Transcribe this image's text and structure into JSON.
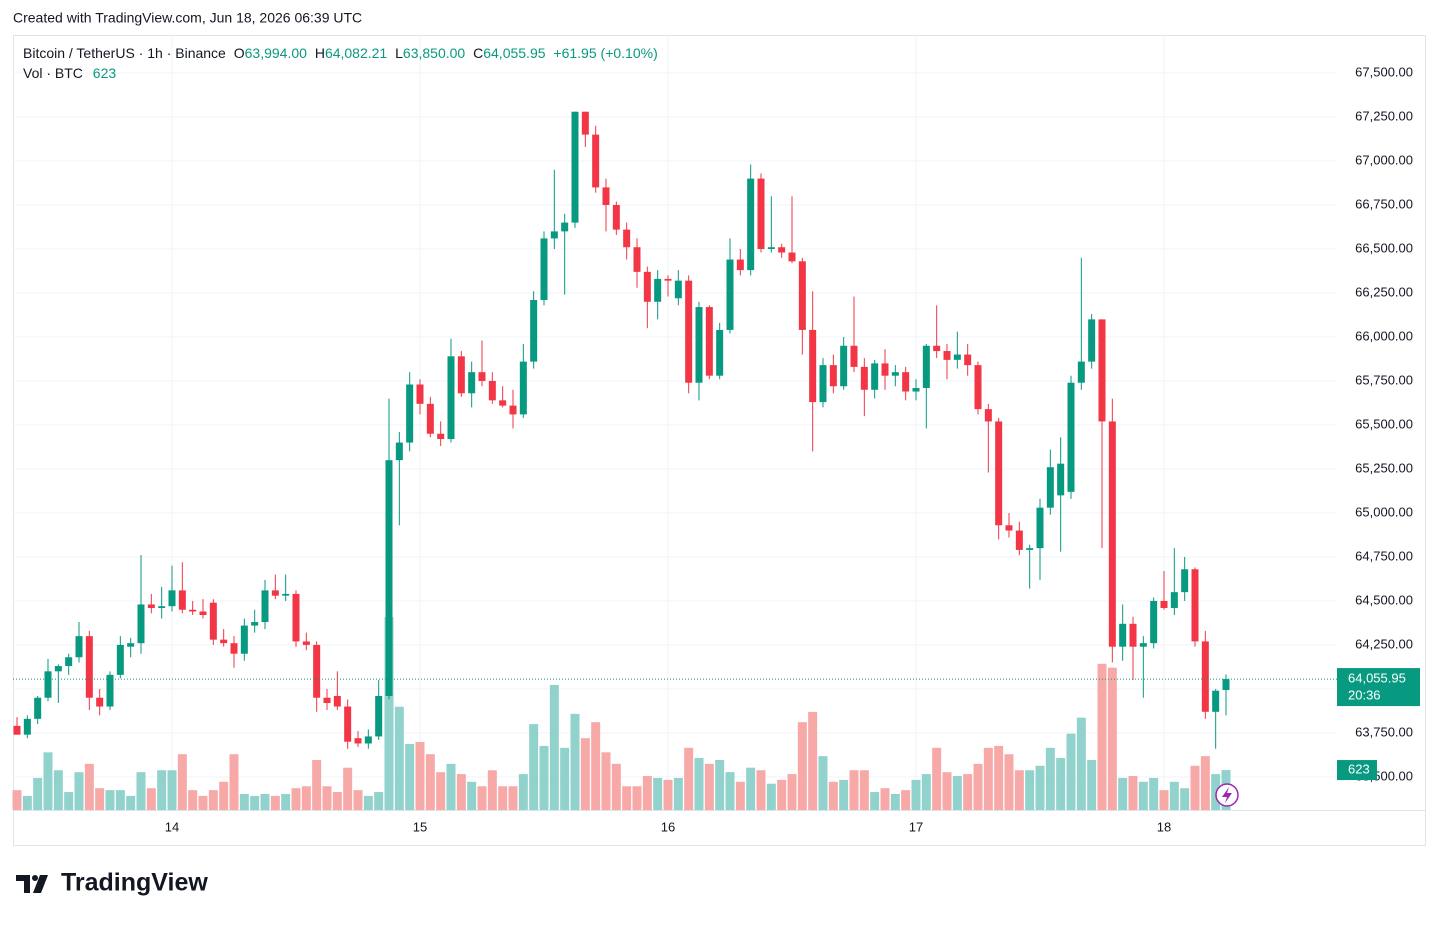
{
  "chart_data": {
    "type": "candlestick",
    "caption": "Created with TradingView.com, Jun 18, 2026 06:39 UTC",
    "brand": "TradingView",
    "legend": {
      "symbol": "Bitcoin / TetherUS · 1h · Binance",
      "o_prefix": "O",
      "o": {
        "value": 63994,
        "label": "63,994.00"
      },
      "h_prefix": "H",
      "h": {
        "value": 64082.21,
        "label": "64,082.21"
      },
      "l_prefix": "L",
      "l": {
        "value": 63850,
        "label": "63,850.00"
      },
      "c_prefix": "C",
      "c": {
        "value": 64055.95,
        "label": "64,055.95"
      },
      "change": {
        "value": 61.95,
        "label": "+61.95"
      },
      "change_pct": {
        "value": 0.1,
        "label": "(+0.10%)"
      },
      "vol_name": "Vol · BTC",
      "vol": 623
    },
    "countdown": "20:36",
    "up_color": "#089981",
    "down_color": "#f23645",
    "up_volume_color": "#92d2cc",
    "down_volume_color": "#f7a9a7",
    "grid": true,
    "ylim": [
      63312,
      67716
    ],
    "yticks": [
      {
        "value": 63500,
        "label": "63,500.00"
      },
      {
        "value": 63750,
        "label": "63,750.00"
      },
      {
        "value": 64000,
        "label": "64,000.00"
      },
      {
        "value": 64250,
        "label": "64,250.00"
      },
      {
        "value": 64500,
        "label": "64,500.00"
      },
      {
        "value": 64750,
        "label": "64,750.00"
      },
      {
        "value": 65000,
        "label": "65,000.00"
      },
      {
        "value": 65250,
        "label": "65,250.00"
      },
      {
        "value": 65500,
        "label": "65,500.00"
      },
      {
        "value": 65750,
        "label": "65,750.00"
      },
      {
        "value": 66000,
        "label": "66,000.00"
      },
      {
        "value": 66250,
        "label": "66,250.00"
      },
      {
        "value": 66500,
        "label": "66,500.00"
      },
      {
        "value": 66750,
        "label": "66,750.00"
      },
      {
        "value": 67000,
        "label": "67,000.00"
      },
      {
        "value": 67250,
        "label": "67,250.00"
      },
      {
        "value": 67500,
        "label": "67,500.00"
      }
    ],
    "categories": [
      null,
      null,
      null,
      null,
      null,
      null,
      null,
      null,
      null,
      null,
      null,
      null,
      null,
      null,
      null,
      "14",
      null,
      null,
      null,
      null,
      null,
      null,
      null,
      null,
      null,
      null,
      null,
      null,
      null,
      null,
      null,
      null,
      null,
      null,
      null,
      null,
      null,
      null,
      null,
      "15",
      null,
      null,
      null,
      null,
      null,
      null,
      null,
      null,
      null,
      null,
      null,
      null,
      null,
      null,
      null,
      null,
      null,
      null,
      null,
      null,
      null,
      null,
      null,
      "16",
      null,
      null,
      null,
      null,
      null,
      null,
      null,
      null,
      null,
      null,
      null,
      null,
      null,
      null,
      null,
      null,
      null,
      null,
      null,
      null,
      null,
      null,
      null,
      "17",
      null,
      null,
      null,
      null,
      null,
      null,
      null,
      null,
      null,
      null,
      null,
      null,
      null,
      null,
      null,
      null,
      null,
      null,
      null,
      null,
      null,
      null,
      null,
      "18",
      null,
      null,
      null,
      null,
      null,
      null
    ],
    "open": [
      63790,
      63740,
      63830,
      63950,
      64100,
      64130,
      64180,
      64300,
      63950,
      63900,
      64080,
      64240,
      64260,
      64480,
      64460,
      64470,
      64560,
      64450,
      64440,
      64490,
      64280,
      64260,
      64200,
      64360,
      64380,
      64560,
      64530,
      64540,
      64270,
      64250,
      63950,
      63960,
      63900,
      63720,
      63690,
      63730,
      63960,
      65300,
      65400,
      65730,
      65620,
      65450,
      65420,
      65890,
      65680,
      65800,
      65750,
      65640,
      65610,
      65560,
      65860,
      66210,
      66560,
      66600,
      66650,
      67280,
      67150,
      66850,
      66750,
      66610,
      66510,
      66370,
      66200,
      66330,
      66220,
      66320,
      65740,
      66170,
      65780,
      66040,
      66440,
      66380,
      66900,
      66500,
      66510,
      66480,
      66430,
      66040,
      65630,
      65840,
      65720,
      65950,
      65830,
      65700,
      65850,
      65780,
      65800,
      65690,
      65710,
      65950,
      65920,
      65870,
      65900,
      65840,
      65590,
      65520,
      64930,
      64900,
      64790,
      64800,
      65030,
      65100,
      65120,
      65740,
      65860,
      66100,
      65520,
      64240,
      64370,
      64240,
      64260,
      64500,
      64460,
      64550,
      64680,
      64270,
      63870,
      63994
    ],
    "high": [
      63840,
      63850,
      63960,
      64170,
      64140,
      64200,
      64380,
      64330,
      64000,
      64100,
      64300,
      64290,
      64760,
      64540,
      64580,
      64700,
      64720,
      64500,
      64510,
      64510,
      64340,
      64300,
      64400,
      64450,
      64620,
      64650,
      64650,
      64560,
      64320,
      64270,
      64000,
      64100,
      63940,
      63760,
      63770,
      64050,
      65650,
      65460,
      65800,
      65760,
      65660,
      65520,
      65990,
      65920,
      65860,
      65980,
      65800,
      65720,
      65700,
      65960,
      66260,
      66600,
      66950,
      66700,
      67280,
      67280,
      67200,
      66900,
      66770,
      66650,
      66560,
      66400,
      66380,
      66350,
      66380,
      66350,
      66200,
      66180,
      66080,
      66560,
      66500,
      66980,
      66930,
      66800,
      66530,
      66800,
      66450,
      66260,
      65880,
      65900,
      66000,
      66230,
      65880,
      65870,
      65930,
      65840,
      65830,
      65760,
      65960,
      66180,
      65960,
      66030,
      65960,
      65860,
      65620,
      65540,
      65000,
      64950,
      64820,
      65080,
      65360,
      65430,
      65780,
      66450,
      66130,
      66100,
      65650,
      64480,
      64410,
      64300,
      64520,
      64670,
      64800,
      64750,
      64690,
      64330,
      64000,
      64082.21
    ],
    "low": [
      63740,
      63720,
      63800,
      63930,
      63920,
      64080,
      64150,
      63880,
      63850,
      63880,
      64060,
      64180,
      64200,
      64430,
      64400,
      64440,
      64430,
      64420,
      64400,
      64250,
      64240,
      64120,
      64160,
      64320,
      64340,
      64510,
      64500,
      64240,
      64220,
      63870,
      63880,
      63880,
      63660,
      63670,
      63660,
      63710,
      63940,
      64930,
      65350,
      65560,
      65430,
      65380,
      65400,
      65660,
      65600,
      65720,
      65620,
      65600,
      65480,
      65540,
      65820,
      66180,
      66500,
      66240,
      66620,
      67080,
      66820,
      66600,
      66580,
      66440,
      66280,
      66050,
      66100,
      66230,
      66180,
      65680,
      65640,
      65760,
      65760,
      66020,
      66350,
      66350,
      66480,
      66480,
      66450,
      66420,
      65900,
      65350,
      65600,
      65680,
      65700,
      65800,
      65550,
      65650,
      65700,
      65720,
      65640,
      65640,
      65480,
      65880,
      65760,
      65820,
      65780,
      65560,
      65230,
      64850,
      64860,
      64760,
      64570,
      64620,
      64990,
      64780,
      65080,
      65700,
      65820,
      64800,
      64150,
      64160,
      64050,
      63950,
      64230,
      64450,
      64420,
      64500,
      64240,
      63830,
      63660,
      63850
    ],
    "close": [
      63740,
      63830,
      63950,
      64100,
      64130,
      64180,
      64300,
      63950,
      63900,
      64080,
      64250,
      64260,
      64480,
      64460,
      64470,
      64560,
      64450,
      64440,
      64420,
      64280,
      64260,
      64200,
      64360,
      64380,
      64560,
      64530,
      64540,
      64270,
      64250,
      63950,
      63920,
      63900,
      63700,
      63690,
      63730,
      63960,
      65300,
      65400,
      65730,
      65620,
      65450,
      65420,
      65890,
      65680,
      65800,
      65750,
      65640,
      65610,
      65560,
      65860,
      66210,
      66560,
      66600,
      66650,
      67280,
      67150,
      66850,
      66750,
      66610,
      66510,
      66370,
      66200,
      66330,
      66320,
      66320,
      65740,
      66170,
      65780,
      66040,
      66440,
      66380,
      66900,
      66500,
      66510,
      66480,
      66430,
      66040,
      65630,
      65840,
      65720,
      65950,
      65830,
      65700,
      65850,
      65780,
      65800,
      65690,
      65710,
      65950,
      65920,
      65870,
      65900,
      65840,
      65590,
      65520,
      64930,
      64900,
      64790,
      64800,
      65030,
      65260,
      65280,
      65740,
      65860,
      66100,
      65520,
      64240,
      64370,
      64240,
      64260,
      64500,
      64460,
      64550,
      64680,
      64270,
      63870,
      63990,
      64055.95
    ],
    "volume": [
      310,
      220,
      500,
      900,
      620,
      280,
      590,
      720,
      340,
      310,
      310,
      220,
      590,
      340,
      620,
      620,
      870,
      310,
      220,
      310,
      440,
      870,
      250,
      220,
      250,
      220,
      250,
      340,
      370,
      780,
      370,
      280,
      660,
      310,
      220,
      280,
      3010,
      1610,
      1030,
      1060,
      870,
      590,
      720,
      560,
      440,
      370,
      620,
      370,
      370,
      560,
      1340,
      1000,
      1950,
      970,
      1500,
      1120,
      1370,
      900,
      720,
      370,
      370,
      530,
      500,
      470,
      500,
      970,
      810,
      720,
      780,
      590,
      440,
      660,
      620,
      410,
      470,
      560,
      1370,
      1530,
      840,
      440,
      470,
      620,
      620,
      280,
      340,
      250,
      310,
      470,
      560,
      970,
      590,
      530,
      560,
      720,
      970,
      1000,
      870,
      620,
      620,
      690,
      970,
      810,
      1190,
      1440,
      780,
      2280,
      2220,
      500,
      530,
      440,
      500,
      310,
      440,
      340,
      690,
      840,
      560,
      623
    ]
  }
}
